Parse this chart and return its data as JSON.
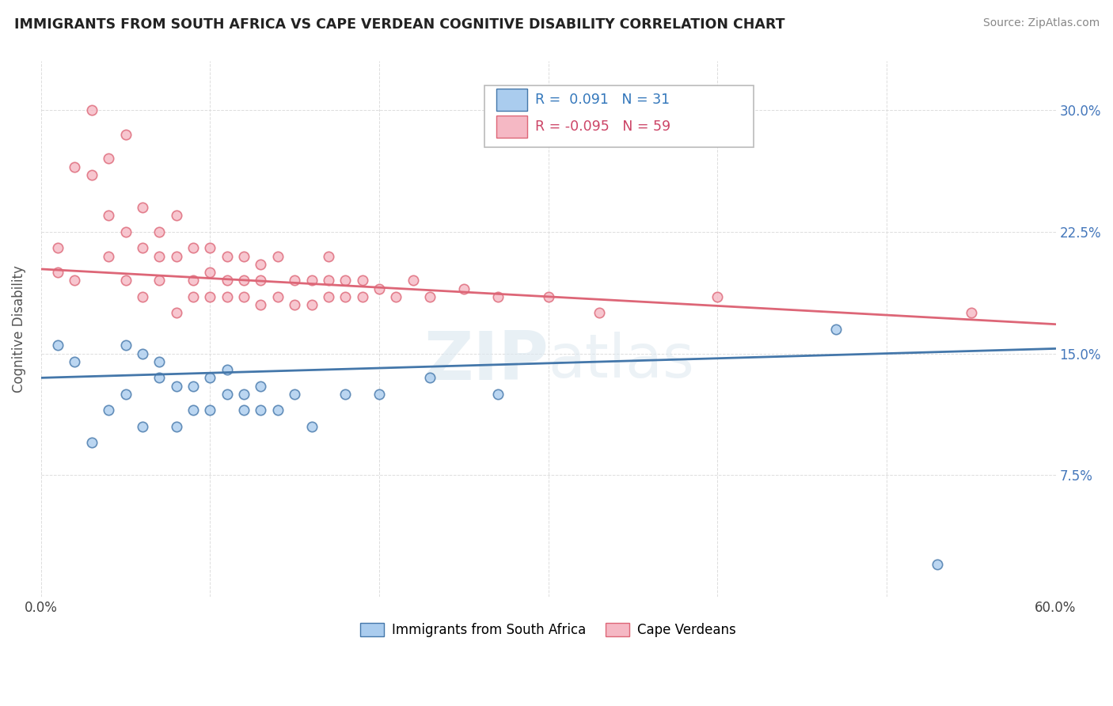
{
  "title": "IMMIGRANTS FROM SOUTH AFRICA VS CAPE VERDEAN COGNITIVE DISABILITY CORRELATION CHART",
  "source": "Source: ZipAtlas.com",
  "ylabel": "Cognitive Disability",
  "xlim": [
    0.0,
    0.6
  ],
  "ylim": [
    0.0,
    0.33
  ],
  "xticks": [
    0.0,
    0.1,
    0.2,
    0.3,
    0.4,
    0.5,
    0.6
  ],
  "xticklabels": [
    "0.0%",
    "",
    "",
    "",
    "",
    "",
    "60.0%"
  ],
  "yticks": [
    0.075,
    0.15,
    0.225,
    0.3
  ],
  "yticklabels": [
    "7.5%",
    "15.0%",
    "22.5%",
    "30.0%"
  ],
  "r_south_africa": 0.091,
  "n_south_africa": 31,
  "r_cape_verdean": -0.095,
  "n_cape_verdean": 59,
  "color_south_africa": "#aaccee",
  "color_cape_verdean": "#f5b8c4",
  "trendline_south_africa": "#4477aa",
  "trendline_cape_verdean": "#dd6677",
  "watermark": "ZIPatlas",
  "sa_trend_y0": 0.135,
  "sa_trend_y1": 0.153,
  "cv_trend_y0": 0.202,
  "cv_trend_y1": 0.168,
  "south_africa_x": [
    0.01,
    0.02,
    0.03,
    0.04,
    0.05,
    0.05,
    0.06,
    0.06,
    0.07,
    0.07,
    0.08,
    0.08,
    0.09,
    0.09,
    0.1,
    0.1,
    0.11,
    0.11,
    0.12,
    0.12,
    0.13,
    0.13,
    0.14,
    0.15,
    0.16,
    0.18,
    0.2,
    0.23,
    0.27,
    0.47,
    0.53
  ],
  "south_africa_y": [
    0.155,
    0.145,
    0.095,
    0.115,
    0.125,
    0.155,
    0.105,
    0.15,
    0.135,
    0.145,
    0.105,
    0.13,
    0.115,
    0.13,
    0.115,
    0.135,
    0.125,
    0.14,
    0.115,
    0.125,
    0.13,
    0.115,
    0.115,
    0.125,
    0.105,
    0.125,
    0.125,
    0.135,
    0.125,
    0.165,
    0.02
  ],
  "cape_verdean_x": [
    0.01,
    0.01,
    0.02,
    0.02,
    0.03,
    0.03,
    0.04,
    0.04,
    0.04,
    0.05,
    0.05,
    0.05,
    0.06,
    0.06,
    0.06,
    0.07,
    0.07,
    0.07,
    0.08,
    0.08,
    0.08,
    0.09,
    0.09,
    0.09,
    0.1,
    0.1,
    0.1,
    0.11,
    0.11,
    0.11,
    0.12,
    0.12,
    0.12,
    0.13,
    0.13,
    0.13,
    0.14,
    0.14,
    0.15,
    0.15,
    0.16,
    0.16,
    0.17,
    0.17,
    0.17,
    0.18,
    0.18,
    0.19,
    0.19,
    0.2,
    0.21,
    0.22,
    0.23,
    0.25,
    0.27,
    0.3,
    0.33,
    0.4,
    0.55
  ],
  "cape_verdean_y": [
    0.2,
    0.215,
    0.195,
    0.265,
    0.26,
    0.3,
    0.21,
    0.235,
    0.27,
    0.195,
    0.225,
    0.285,
    0.185,
    0.215,
    0.24,
    0.195,
    0.21,
    0.225,
    0.175,
    0.21,
    0.235,
    0.185,
    0.195,
    0.215,
    0.185,
    0.2,
    0.215,
    0.185,
    0.195,
    0.21,
    0.185,
    0.195,
    0.21,
    0.18,
    0.195,
    0.205,
    0.185,
    0.21,
    0.18,
    0.195,
    0.18,
    0.195,
    0.185,
    0.195,
    0.21,
    0.185,
    0.195,
    0.185,
    0.195,
    0.19,
    0.185,
    0.195,
    0.185,
    0.19,
    0.185,
    0.185,
    0.175,
    0.185,
    0.175
  ]
}
